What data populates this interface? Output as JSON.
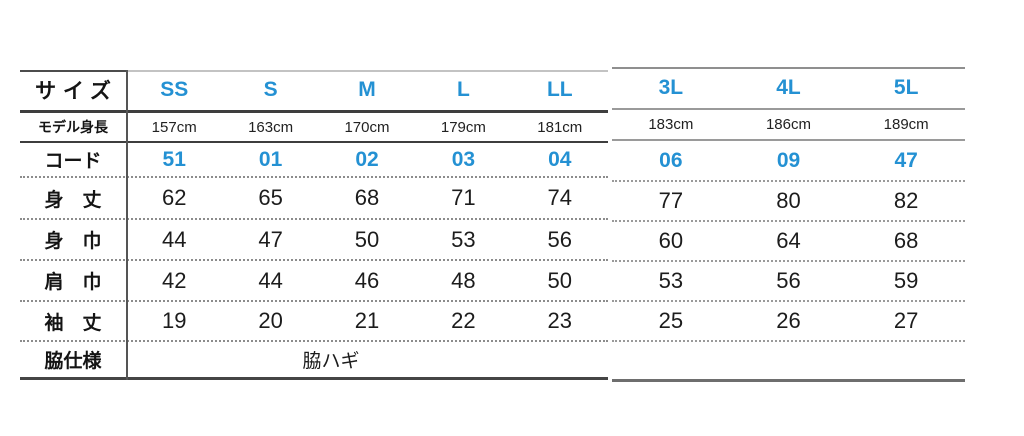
{
  "size_chart": {
    "labels": {
      "size": "サイズ",
      "model_height": "モデル身長",
      "code": "コード",
      "body_length": "身　丈",
      "body_width": "身　巾",
      "shoulder_width": "肩　巾",
      "sleeve_length": "袖　丈",
      "side_spec": "脇仕様"
    },
    "sizes": [
      "SS",
      "S",
      "M",
      "L",
      "LL",
      "3L",
      "4L",
      "5L"
    ],
    "model_heights": [
      "157cm",
      "163cm",
      "170cm",
      "179cm",
      "181cm",
      "183cm",
      "186cm",
      "189cm"
    ],
    "codes": [
      "51",
      "01",
      "02",
      "03",
      "04",
      "06",
      "09",
      "47"
    ],
    "body_length": [
      "62",
      "65",
      "68",
      "71",
      "74",
      "77",
      "80",
      "82"
    ],
    "body_width": [
      "44",
      "47",
      "50",
      "53",
      "56",
      "60",
      "64",
      "68"
    ],
    "shoulder_width": [
      "42",
      "44",
      "46",
      "48",
      "50",
      "53",
      "56",
      "59"
    ],
    "sleeve_length": [
      "19",
      "20",
      "21",
      "22",
      "23",
      "25",
      "26",
      "27"
    ],
    "side_spec_value": "脇ハギ"
  },
  "colors": {
    "accent_blue": "#2491d3",
    "text_dark": "#1c1c1c",
    "rule_dark": "#3e3e3e",
    "rule_gray": "#9a9a9a"
  }
}
